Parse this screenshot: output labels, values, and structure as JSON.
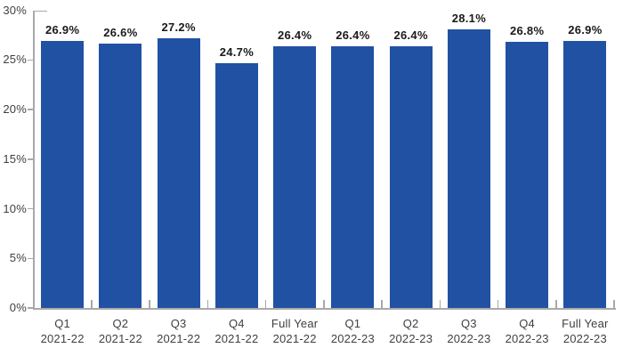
{
  "chart_data": {
    "type": "bar",
    "title": "",
    "categories": [
      {
        "line1": "Q1",
        "line2": "2021-22"
      },
      {
        "line1": "Q2",
        "line2": "2021-22"
      },
      {
        "line1": "Q3",
        "line2": "2021-22"
      },
      {
        "line1": "Q4",
        "line2": "2021-22"
      },
      {
        "line1": "Full Year",
        "line2": "2021-22"
      },
      {
        "line1": "Q1",
        "line2": "2022-23"
      },
      {
        "line1": "Q2",
        "line2": "2022-23"
      },
      {
        "line1": "Q3",
        "line2": "2022-23"
      },
      {
        "line1": "Q4",
        "line2": "2022-23"
      },
      {
        "line1": "Full Year",
        "line2": "2022-23"
      }
    ],
    "values": [
      26.9,
      26.6,
      27.2,
      24.7,
      26.4,
      26.4,
      26.4,
      28.1,
      26.8,
      26.9
    ],
    "value_labels": [
      "26.9%",
      "26.6%",
      "27.2%",
      "24.7%",
      "26.4%",
      "26.4%",
      "26.4%",
      "28.1%",
      "26.8%",
      "26.9%"
    ],
    "xlabel": "",
    "ylabel": "",
    "ylim": [
      0,
      30
    ],
    "ytick_labels": [
      "0%",
      "5%",
      "10%",
      "15%",
      "20%",
      "25%",
      "30%"
    ],
    "ytick_values": [
      0,
      5,
      10,
      15,
      20,
      25,
      30
    ],
    "grid": "off",
    "legend": "none",
    "colors": {
      "bar": "#2151a3",
      "axis": "#a9a9a9",
      "value_label": "#1a1a1a",
      "tick_label": "#3f3f3f",
      "background": "#ffffff"
    }
  }
}
